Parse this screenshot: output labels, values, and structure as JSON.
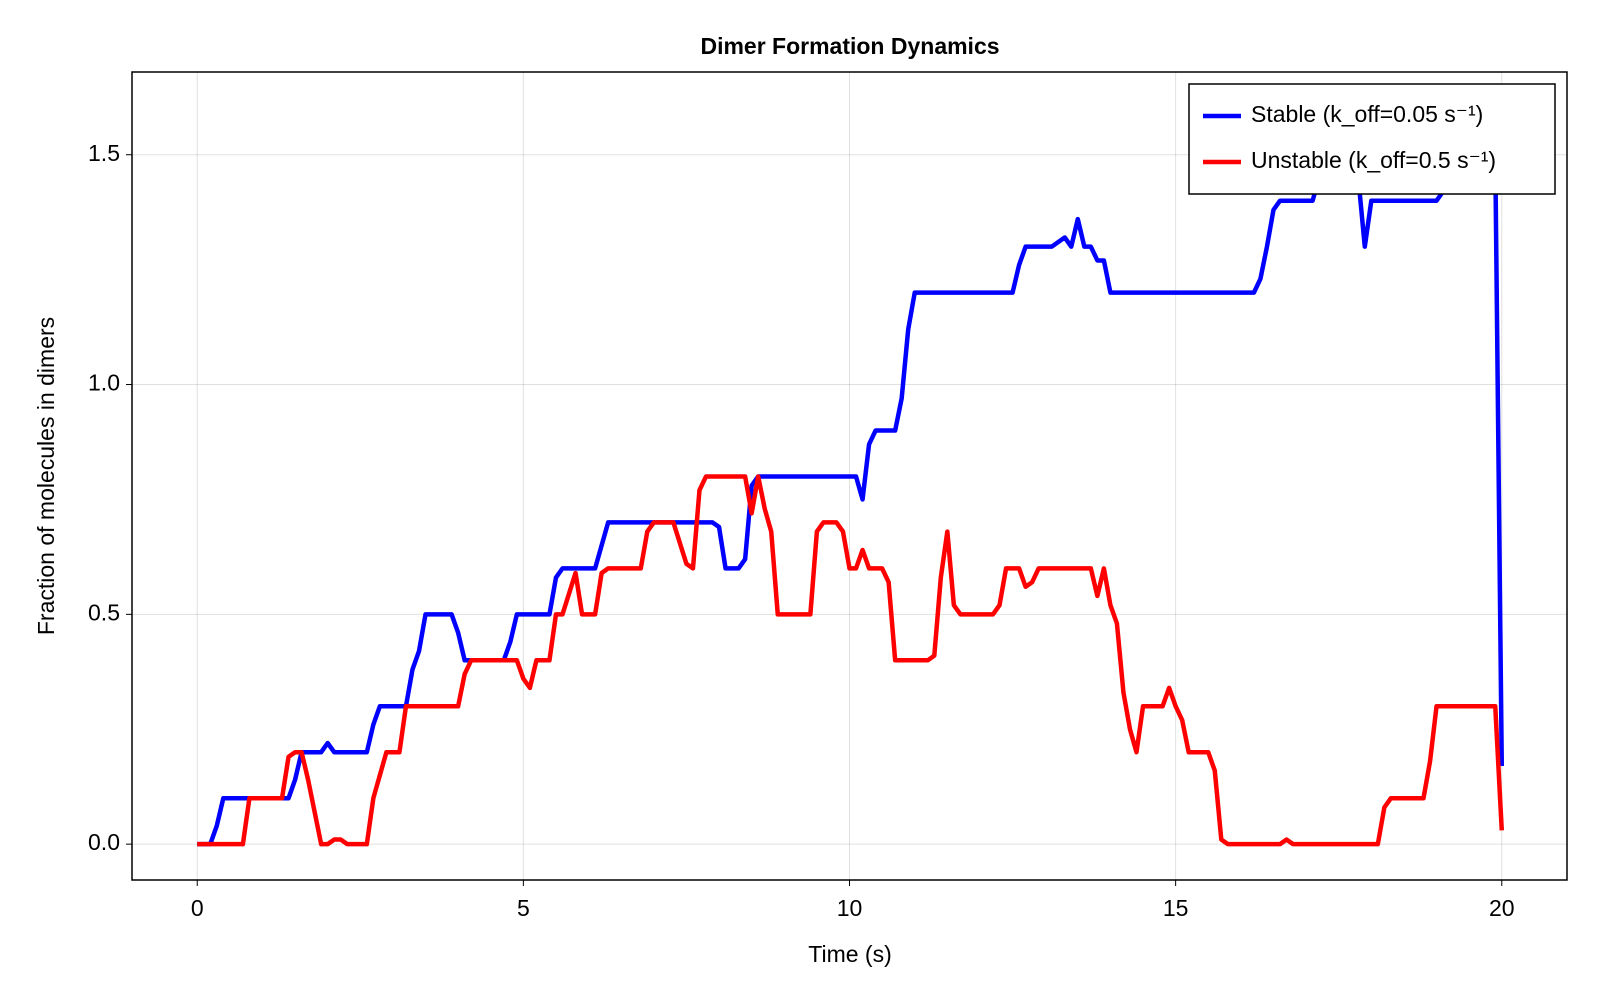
{
  "chart_data": {
    "type": "line",
    "title": "Dimer Formation Dynamics",
    "x_label": "Time (s)",
    "y_label": "Fraction of molecules in dimers",
    "xlim": [
      -1.0,
      21.0
    ],
    "ylim": [
      -0.078,
      1.68
    ],
    "xticks": [
      0,
      5,
      10,
      15,
      20
    ],
    "yticks": [
      {
        "value": 0,
        "label": "0.0"
      },
      0.5,
      {
        "value": 1,
        "label": "1.0"
      },
      1.5
    ],
    "grid": true,
    "legend": "top-right",
    "series": [
      {
        "name": "Stable (k_off=0.05 s⁻¹)",
        "color": "#0000ff",
        "x": [
          0,
          0.2,
          0.3,
          0.4,
          1.4,
          1.5,
          1.6,
          1.9,
          2.0,
          2.1,
          2.6,
          2.7,
          2.8,
          3.2,
          3.3,
          3.4,
          3.5,
          3.9,
          4.0,
          4.1,
          4.7,
          4.8,
          4.9,
          5.4,
          5.5,
          5.6,
          6.1,
          6.3,
          7.9,
          8.0,
          8.1,
          8.3,
          8.4,
          8.5,
          8.6,
          10.1,
          10.2,
          10.3,
          10.4,
          10.7,
          10.8,
          10.9,
          11.0,
          12.5,
          12.6,
          12.7,
          13.1,
          13.3,
          13.4,
          13.5,
          13.6,
          13.7,
          13.8,
          13.9,
          14.0,
          16.2,
          16.3,
          16.4,
          16.5,
          16.6,
          17.1,
          17.2,
          17.8,
          17.9,
          18.0,
          19.0,
          19.1,
          19.2,
          19.9,
          20.0
        ],
        "values": [
          0,
          0,
          0.04,
          0.1,
          0.1,
          0.14,
          0.2,
          0.2,
          0.22,
          0.2,
          0.2,
          0.26,
          0.3,
          0.3,
          0.38,
          0.42,
          0.5,
          0.5,
          0.46,
          0.4,
          0.4,
          0.44,
          0.5,
          0.5,
          0.58,
          0.6,
          0.6,
          0.7,
          0.7,
          0.69,
          0.6,
          0.6,
          0.62,
          0.78,
          0.8,
          0.8,
          0.75,
          0.87,
          0.9,
          0.9,
          0.97,
          1.12,
          1.2,
          1.2,
          1.26,
          1.3,
          1.3,
          1.32,
          1.3,
          1.36,
          1.3,
          1.3,
          1.27,
          1.27,
          1.2,
          1.2,
          1.23,
          1.3,
          1.38,
          1.4,
          1.4,
          1.45,
          1.45,
          1.3,
          1.4,
          1.4,
          1.42,
          1.45,
          1.5,
          0.17
        ]
      },
      {
        "name": "Unstable (k_off=0.5 s⁻¹)",
        "color": "#ff0000",
        "x": [
          0,
          0.7,
          0.8,
          1.3,
          1.4,
          1.5,
          1.6,
          1.7,
          1.8,
          1.9,
          2.0,
          2.1,
          2.2,
          2.3,
          2.6,
          2.7,
          2.9,
          3.1,
          3.2,
          4.0,
          4.1,
          4.2,
          4.9,
          5.0,
          5.1,
          5.2,
          5.4,
          5.5,
          5.6,
          5.8,
          5.9,
          6.1,
          6.2,
          6.3,
          6.8,
          6.9,
          7.0,
          7.3,
          7.5,
          7.6,
          7.7,
          7.8,
          8.4,
          8.5,
          8.6,
          8.7,
          8.8,
          8.9,
          9.4,
          9.5,
          9.6,
          9.8,
          9.9,
          10.0,
          10.1,
          10.2,
          10.3,
          10.5,
          10.6,
          10.7,
          11.2,
          11.3,
          11.4,
          11.5,
          11.6,
          11.7,
          12.2,
          12.3,
          12.4,
          12.6,
          12.7,
          12.8,
          12.9,
          13.7,
          13.8,
          13.9,
          14.0,
          14.1,
          14.2,
          14.3,
          14.4,
          14.5,
          14.8,
          14.9,
          15.0,
          15.1,
          15.2,
          15.5,
          15.6,
          15.7,
          15.8,
          16.6,
          16.7,
          16.8,
          18.1,
          18.2,
          18.3,
          18.8,
          18.9,
          19.0,
          19.9,
          20.0
        ],
        "values": [
          0,
          0,
          0.1,
          0.1,
          0.19,
          0.2,
          0.2,
          0.14,
          0.07,
          0,
          0,
          0.01,
          0.01,
          0,
          0,
          0.1,
          0.2,
          0.2,
          0.3,
          0.3,
          0.37,
          0.4,
          0.4,
          0.36,
          0.34,
          0.4,
          0.4,
          0.5,
          0.5,
          0.59,
          0.5,
          0.5,
          0.59,
          0.6,
          0.6,
          0.68,
          0.7,
          0.7,
          0.61,
          0.6,
          0.77,
          0.8,
          0.8,
          0.72,
          0.8,
          0.73,
          0.68,
          0.5,
          0.5,
          0.68,
          0.7,
          0.7,
          0.68,
          0.6,
          0.6,
          0.64,
          0.6,
          0.6,
          0.57,
          0.4,
          0.4,
          0.41,
          0.58,
          0.68,
          0.52,
          0.5,
          0.5,
          0.52,
          0.6,
          0.6,
          0.56,
          0.57,
          0.6,
          0.6,
          0.54,
          0.6,
          0.52,
          0.48,
          0.33,
          0.25,
          0.2,
          0.3,
          0.3,
          0.34,
          0.3,
          0.27,
          0.2,
          0.2,
          0.16,
          0.01,
          0,
          0,
          0.01,
          0,
          0,
          0.08,
          0.1,
          0.1,
          0.18,
          0.3,
          0.3,
          0.03
        ]
      }
    ]
  }
}
